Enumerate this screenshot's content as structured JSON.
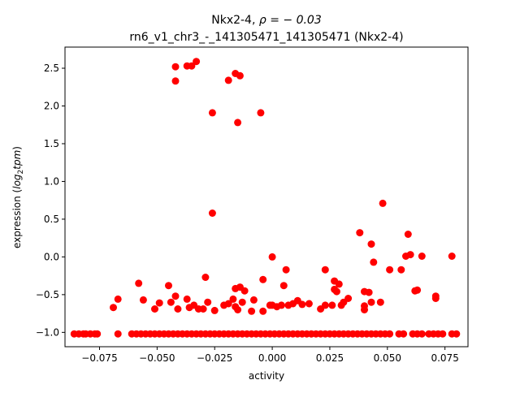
{
  "chart_data": {
    "type": "scatter",
    "title_line1": "Nkx2-4, ",
    "title_rho": "ρ = − 0.03",
    "title_line2": "rn6_v1_chr3_-_141305471_141305471 (Nkx2-4)",
    "xlabel": "activity",
    "ylabel_prefix": "expression (",
    "ylabel_log": "log",
    "ylabel_sub": "2",
    "ylabel_tpm": "tpm",
    "ylabel_suffix": ")",
    "xlim": [
      -0.09,
      0.085
    ],
    "ylim": [
      -1.19,
      2.78
    ],
    "xticks": [
      -0.075,
      -0.05,
      -0.025,
      0.0,
      0.025,
      0.05,
      0.075
    ],
    "xtick_labels": [
      "−0.075",
      "−0.050",
      "−0.025",
      "0.000",
      "0.025",
      "0.050",
      "0.075"
    ],
    "yticks": [
      -1.0,
      -0.5,
      0.0,
      0.5,
      1.0,
      1.5,
      2.0,
      2.5
    ],
    "ytick_labels": [
      "−1.0",
      "−0.5",
      "0.0",
      "0.5",
      "1.0",
      "1.5",
      "2.0",
      "2.5"
    ],
    "marker_color": "#ff0000",
    "grid": false,
    "series": [
      {
        "points": [
          [
            -0.042,
            2.52
          ],
          [
            -0.042,
            2.33
          ],
          [
            -0.037,
            2.53
          ],
          [
            -0.035,
            2.53
          ],
          [
            -0.033,
            2.59
          ],
          [
            -0.019,
            2.34
          ],
          [
            -0.016,
            2.43
          ],
          [
            -0.014,
            2.4
          ],
          [
            -0.026,
            1.91
          ],
          [
            -0.005,
            1.91
          ],
          [
            -0.015,
            1.78
          ],
          [
            -0.026,
            0.58
          ],
          [
            0.048,
            0.71
          ],
          [
            0.038,
            0.32
          ],
          [
            0.059,
            0.3
          ],
          [
            0.043,
            0.17
          ],
          [
            0.0,
            0.0
          ],
          [
            0.058,
            0.01
          ],
          [
            0.06,
            0.03
          ],
          [
            0.065,
            0.01
          ],
          [
            0.078,
            0.01
          ],
          [
            0.044,
            -0.07
          ],
          [
            0.006,
            -0.17
          ],
          [
            0.023,
            -0.17
          ],
          [
            0.051,
            -0.17
          ],
          [
            0.056,
            -0.17
          ],
          [
            -0.029,
            -0.27
          ],
          [
            -0.004,
            -0.3
          ],
          [
            -0.058,
            -0.35
          ],
          [
            -0.045,
            -0.38
          ],
          [
            0.005,
            -0.38
          ],
          [
            -0.016,
            -0.42
          ],
          [
            -0.014,
            -0.4
          ],
          [
            -0.012,
            -0.45
          ],
          [
            0.027,
            -0.43
          ],
          [
            0.028,
            -0.46
          ],
          [
            0.04,
            -0.46
          ],
          [
            0.042,
            -0.47
          ],
          [
            0.063,
            -0.44
          ],
          [
            0.062,
            -0.45
          ],
          [
            -0.067,
            -0.56
          ],
          [
            -0.056,
            -0.57
          ],
          [
            -0.042,
            -0.52
          ],
          [
            -0.037,
            -0.56
          ],
          [
            -0.017,
            -0.56
          ],
          [
            -0.008,
            -0.57
          ],
          [
            0.011,
            -0.58
          ],
          [
            0.071,
            -0.52
          ],
          [
            0.071,
            -0.55
          ],
          [
            0.033,
            -0.55
          ],
          [
            -0.069,
            -0.67
          ],
          [
            -0.051,
            -0.69
          ],
          [
            -0.049,
            -0.61
          ],
          [
            -0.044,
            -0.6
          ],
          [
            -0.041,
            -0.69
          ],
          [
            -0.036,
            -0.67
          ],
          [
            -0.034,
            -0.64
          ],
          [
            -0.032,
            -0.69
          ],
          [
            -0.03,
            -0.69
          ],
          [
            -0.028,
            -0.6
          ],
          [
            -0.025,
            -0.71
          ],
          [
            -0.021,
            -0.64
          ],
          [
            -0.019,
            -0.62
          ],
          [
            -0.016,
            -0.66
          ],
          [
            -0.015,
            -0.7
          ],
          [
            -0.013,
            -0.6
          ],
          [
            -0.009,
            -0.72
          ],
          [
            -0.004,
            -0.72
          ],
          [
            -0.001,
            -0.64
          ],
          [
            0.0,
            -0.64
          ],
          [
            0.002,
            -0.66
          ],
          [
            0.004,
            -0.64
          ],
          [
            0.007,
            -0.64
          ],
          [
            0.009,
            -0.62
          ],
          [
            0.013,
            -0.63
          ],
          [
            0.016,
            -0.62
          ],
          [
            0.021,
            -0.69
          ],
          [
            0.023,
            -0.64
          ],
          [
            0.026,
            -0.64
          ],
          [
            0.03,
            -0.64
          ],
          [
            0.031,
            -0.6
          ],
          [
            0.04,
            -0.65
          ],
          [
            0.04,
            -0.7
          ],
          [
            0.043,
            -0.6
          ],
          [
            0.047,
            -0.6
          ],
          [
            0.027,
            -0.32
          ],
          [
            0.029,
            -0.36
          ],
          [
            -0.086,
            -1.02
          ],
          [
            -0.084,
            -1.02
          ],
          [
            -0.082,
            -1.02
          ],
          [
            -0.081,
            -1.02
          ],
          [
            -0.079,
            -1.02
          ],
          [
            -0.077,
            -1.02
          ],
          [
            -0.076,
            -1.02
          ],
          [
            -0.067,
            -1.02
          ],
          [
            -0.061,
            -1.02
          ],
          [
            -0.059,
            -1.02
          ],
          [
            -0.057,
            -1.02
          ],
          [
            -0.055,
            -1.02
          ],
          [
            -0.053,
            -1.02
          ],
          [
            -0.051,
            -1.02
          ],
          [
            -0.049,
            -1.02
          ],
          [
            -0.047,
            -1.02
          ],
          [
            -0.045,
            -1.02
          ],
          [
            -0.043,
            -1.02
          ],
          [
            -0.041,
            -1.02
          ],
          [
            -0.039,
            -1.02
          ],
          [
            -0.037,
            -1.02
          ],
          [
            -0.035,
            -1.02
          ],
          [
            -0.033,
            -1.02
          ],
          [
            -0.031,
            -1.02
          ],
          [
            -0.029,
            -1.02
          ],
          [
            -0.027,
            -1.02
          ],
          [
            -0.025,
            -1.02
          ],
          [
            -0.023,
            -1.02
          ],
          [
            -0.021,
            -1.02
          ],
          [
            -0.019,
            -1.02
          ],
          [
            -0.017,
            -1.02
          ],
          [
            -0.015,
            -1.02
          ],
          [
            -0.013,
            -1.02
          ],
          [
            -0.011,
            -1.02
          ],
          [
            -0.009,
            -1.02
          ],
          [
            -0.007,
            -1.02
          ],
          [
            -0.005,
            -1.02
          ],
          [
            -0.003,
            -1.02
          ],
          [
            -0.001,
            -1.02
          ],
          [
            0.001,
            -1.02
          ],
          [
            0.003,
            -1.02
          ],
          [
            0.005,
            -1.02
          ],
          [
            0.007,
            -1.02
          ],
          [
            0.009,
            -1.02
          ],
          [
            0.011,
            -1.02
          ],
          [
            0.013,
            -1.02
          ],
          [
            0.015,
            -1.02
          ],
          [
            0.017,
            -1.02
          ],
          [
            0.019,
            -1.02
          ],
          [
            0.021,
            -1.02
          ],
          [
            0.023,
            -1.02
          ],
          [
            0.025,
            -1.02
          ],
          [
            0.027,
            -1.02
          ],
          [
            0.029,
            -1.02
          ],
          [
            0.031,
            -1.02
          ],
          [
            0.033,
            -1.02
          ],
          [
            0.035,
            -1.02
          ],
          [
            0.037,
            -1.02
          ],
          [
            0.039,
            -1.02
          ],
          [
            0.041,
            -1.02
          ],
          [
            0.043,
            -1.02
          ],
          [
            0.045,
            -1.02
          ],
          [
            0.047,
            -1.02
          ],
          [
            0.049,
            -1.02
          ],
          [
            0.051,
            -1.02
          ],
          [
            0.055,
            -1.02
          ],
          [
            0.057,
            -1.02
          ],
          [
            0.061,
            -1.02
          ],
          [
            0.063,
            -1.02
          ],
          [
            0.065,
            -1.02
          ],
          [
            0.068,
            -1.02
          ],
          [
            0.07,
            -1.02
          ],
          [
            0.072,
            -1.02
          ],
          [
            0.074,
            -1.02
          ],
          [
            0.078,
            -1.02
          ],
          [
            0.08,
            -1.02
          ]
        ]
      }
    ]
  }
}
